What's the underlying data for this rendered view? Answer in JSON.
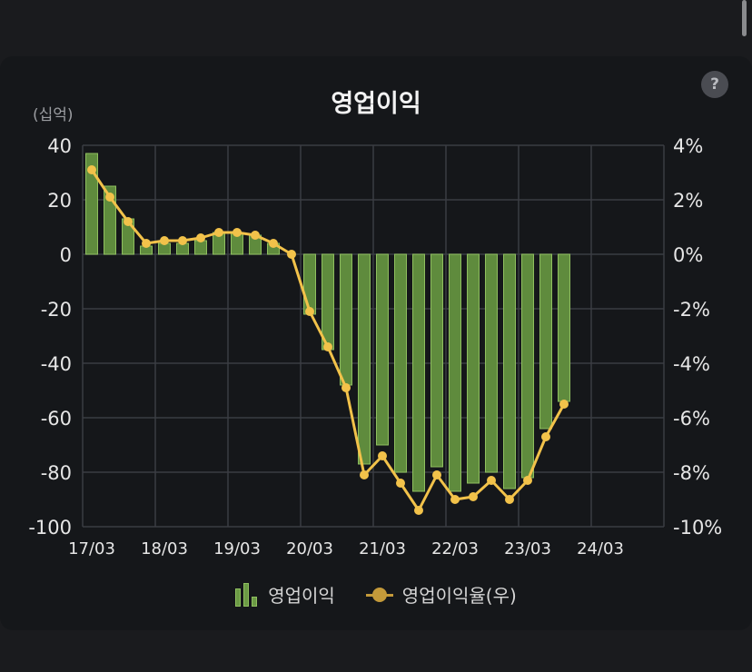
{
  "header": {
    "title": "영업이익",
    "unit_label": "(십억)",
    "help_label": "?"
  },
  "legend": {
    "bar_label": "영업이익",
    "line_label": "영업이익율(우)"
  },
  "colors": {
    "bar_fill": "#5f8b3d",
    "bar_stroke": "#8fbf5f",
    "line": "#f2c24a",
    "grid": "#3a3d42",
    "axis_text": "#e6e6e6"
  },
  "chart_data": {
    "type": "bar",
    "title": "영업이익",
    "ylabel": "(십억)",
    "ylim": [
      -100,
      40
    ],
    "y2lim": [
      -10,
      4
    ],
    "y_ticks": [
      "40",
      "20",
      "0",
      "-20",
      "-40",
      "-60",
      "-80",
      "-100"
    ],
    "y2_ticks": [
      "4%",
      "2%",
      "0%",
      "-2%",
      "-4%",
      "-6%",
      "-8%",
      "-10%"
    ],
    "x_ticks": [
      "17/03",
      "18/03",
      "19/03",
      "20/03",
      "21/03",
      "22/03",
      "23/03",
      "24/03"
    ],
    "grid": true,
    "legend_position": "bottom",
    "categories": [
      "17/03",
      "17/06",
      "17/09",
      "17/12",
      "18/03",
      "18/06",
      "18/09",
      "18/12",
      "19/03",
      "19/06",
      "19/09",
      "19/12",
      "20/03",
      "20/06",
      "20/09",
      "20/12",
      "21/03",
      "21/06",
      "21/09",
      "21/12",
      "22/03",
      "22/06",
      "22/09",
      "22/12",
      "23/03",
      "23/06",
      "23/09",
      "23/12"
    ],
    "series": [
      {
        "name": "영업이익",
        "type": "bar",
        "values": [
          37,
          25,
          13,
          3,
          4,
          4,
          5,
          8,
          8,
          7,
          4,
          0,
          -22,
          -35,
          -48,
          -77,
          -70,
          -80,
          -87,
          -78,
          -87,
          -84,
          -80,
          -86,
          -82,
          -64,
          -54,
          null
        ]
      },
      {
        "name": "영업이익율(우)",
        "type": "line",
        "values": [
          3.1,
          2.1,
          1.2,
          0.4,
          0.5,
          0.5,
          0.6,
          0.8,
          0.8,
          0.7,
          0.4,
          0.0,
          -2.1,
          -3.4,
          -4.9,
          -8.1,
          -7.4,
          -8.4,
          -9.4,
          -8.1,
          -9.0,
          -8.9,
          -8.3,
          -9.0,
          -8.3,
          -6.7,
          -5.5,
          null
        ]
      }
    ]
  }
}
